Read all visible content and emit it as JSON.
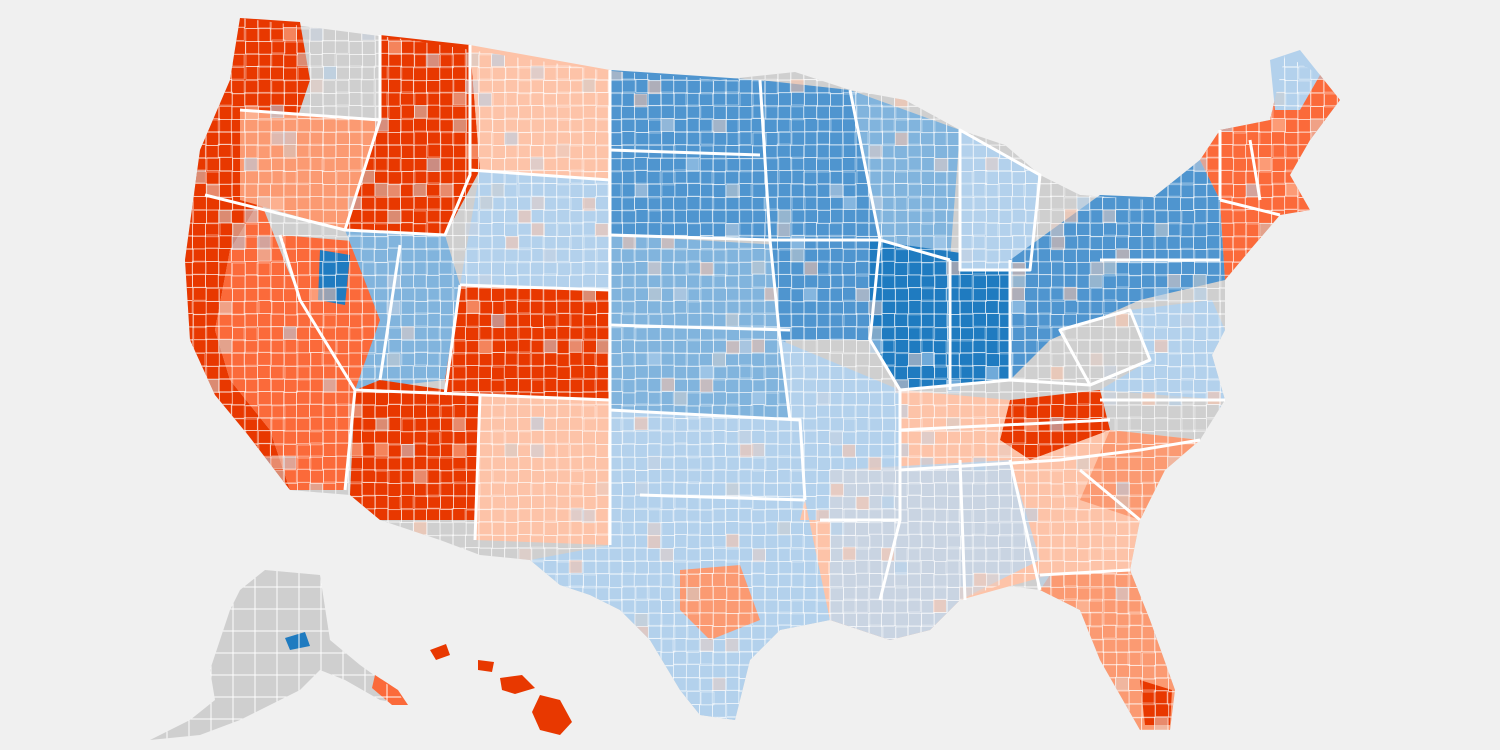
{
  "map": {
    "kind": "us-county-choropleth",
    "labels_shown": false,
    "background": "#f0f0f0",
    "state_border_color": "#ffffff",
    "county_border_color": "#ffffff",
    "palette": {
      "red_5": "#e83800",
      "red_4": "#fb6a3a",
      "red_3": "#fb9a72",
      "red_2": "#fdc3a8",
      "red_1": "#e8cdc5",
      "neutral": "#cfcfcf",
      "blue_1": "#c9d4e2",
      "blue_2": "#b3d1ec",
      "blue_3": "#81b4dd",
      "blue_4": "#4f95cf",
      "blue_5": "#1f7bc0"
    },
    "regions": [
      {
        "name": "pacific-northwest",
        "tone": "red_5"
      },
      {
        "name": "california",
        "tone": "red_5"
      },
      {
        "name": "nevada",
        "tone": "red_4"
      },
      {
        "name": "arizona",
        "tone": "red_5"
      },
      {
        "name": "utah",
        "tone": "blue_3"
      },
      {
        "name": "colorado",
        "tone": "red_5"
      },
      {
        "name": "wyoming",
        "tone": "blue_2"
      },
      {
        "name": "montana",
        "tone": "red_5"
      },
      {
        "name": "north-dakota",
        "tone": "blue_4"
      },
      {
        "name": "minnesota-iowa",
        "tone": "blue_4"
      },
      {
        "name": "illinois-indiana",
        "tone": "blue_5"
      },
      {
        "name": "ohio-pennsylvania",
        "tone": "blue_4"
      },
      {
        "name": "west-virginia",
        "tone": "neutral"
      },
      {
        "name": "appalachia",
        "tone": "red_5"
      },
      {
        "name": "texas",
        "tone": "blue_2"
      },
      {
        "name": "florida",
        "tone": "red_3"
      },
      {
        "name": "northeast-coast",
        "tone": "red_4"
      },
      {
        "name": "alaska",
        "tone": "neutral"
      },
      {
        "name": "hawaii",
        "tone": "red_5"
      }
    ]
  }
}
